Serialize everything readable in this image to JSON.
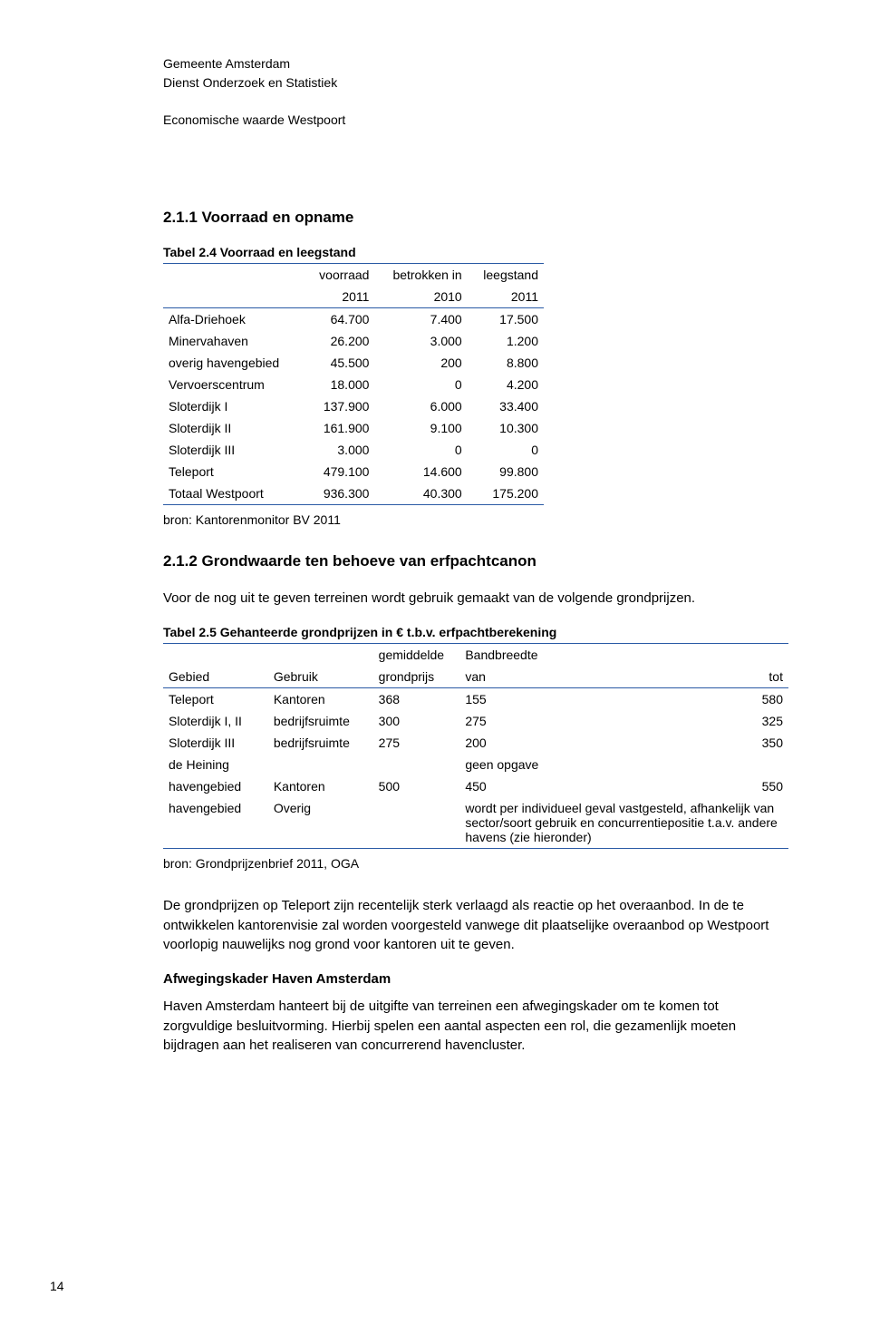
{
  "colors": {
    "rule": "#2a5aa5",
    "text": "#000000",
    "background": "#ffffff"
  },
  "header": {
    "org1": "Gemeente Amsterdam",
    "org2": "Dienst Onderzoek en Statistiek",
    "subject": "Economische waarde Westpoort"
  },
  "section1": {
    "title": "2.1.1 Voorraad en opname"
  },
  "table1": {
    "caption": "Tabel 2.4  Voorraad en leegstand",
    "headrow1": {
      "c0": "",
      "c1": "voorraad",
      "c2": "betrokken in",
      "c3": "leegstand"
    },
    "headrow2": {
      "c0": "",
      "c1": "2011",
      "c2": "2010",
      "c3": "2011"
    },
    "rows": [
      {
        "name": "Alfa-Driehoek",
        "v1": "64.700",
        "v2": "7.400",
        "v3": "17.500"
      },
      {
        "name": "Minervahaven",
        "v1": "26.200",
        "v2": "3.000",
        "v3": "1.200"
      },
      {
        "name": "overig havengebied",
        "v1": "45.500",
        "v2": "200",
        "v3": "8.800"
      },
      {
        "name": "Vervoerscentrum",
        "v1": "18.000",
        "v2": "0",
        "v3": "4.200"
      },
      {
        "name": "Sloterdijk I",
        "v1": "137.900",
        "v2": "6.000",
        "v3": "33.400"
      },
      {
        "name": "Sloterdijk II",
        "v1": "161.900",
        "v2": "9.100",
        "v3": "10.300"
      },
      {
        "name": "Sloterdijk III",
        "v1": "3.000",
        "v2": "0",
        "v3": "0"
      },
      {
        "name": "Teleport",
        "v1": "479.100",
        "v2": "14.600",
        "v3": "99.800"
      },
      {
        "name": "Totaal Westpoort",
        "v1": "936.300",
        "v2": "40.300",
        "v3": "175.200"
      }
    ],
    "source": "bron: Kantorenmonitor BV 2011"
  },
  "section2": {
    "title": "2.1.2 Grondwaarde ten behoeve van erfpachtcanon",
    "intro": "Voor de nog uit te geven terreinen wordt gebruik gemaakt van de volgende grondprijzen."
  },
  "table2": {
    "caption": "Tabel 2.5  Gehanteerde grondprijzen in €  t.b.v.  erfpachtberekening",
    "headrow1": {
      "c0": "",
      "c1": "",
      "c2": "gemiddelde",
      "c3": "Bandbreedte",
      "c4": ""
    },
    "headrow2": {
      "c0": "Gebied",
      "c1": "Gebruik",
      "c2": "grondprijs",
      "c3": "van",
      "c4": "tot"
    },
    "rows": [
      {
        "gebied": "Teleport",
        "gebruik": "Kantoren",
        "gem": "368",
        "van": "155",
        "tot": "580"
      },
      {
        "gebied": "Sloterdijk I, II",
        "gebruik": "bedrijfsruimte",
        "gem": "300",
        "van": "275",
        "tot": "325"
      },
      {
        "gebied": "Sloterdijk III",
        "gebruik": "bedrijfsruimte",
        "gem": "275",
        "van": "200",
        "tot": "350"
      },
      {
        "gebied": "de Heining",
        "gebruik": "",
        "note": "geen opgave"
      },
      {
        "gebied": "havengebied",
        "gebruik": "Kantoren",
        "gem": "500",
        "van": "450",
        "tot": "550"
      },
      {
        "gebied": "havengebied",
        "gebruik": "Overig",
        "note": "wordt per individueel geval vastgesteld, afhankelijk van sector/soort gebruik en concurrentiepositie t.a.v. andere havens (zie hieronder)"
      }
    ],
    "source": "bron: Grondprijzenbrief 2011, OGA"
  },
  "body": {
    "p1": "De grondprijzen op Teleport zijn recentelijk sterk verlaagd als reactie op het overaanbod. In de te ontwikkelen kantorenvisie zal worden voorgesteld vanwege dit plaatselijke overaanbod op Westpoort voorlopig nauwelijks nog grond voor kantoren uit te geven.",
    "h2": "Afwegingskader Haven Amsterdam",
    "p2": "Haven Amsterdam hanteert bij de uitgifte van terreinen een afwegingskader om te komen tot zorgvuldige besluitvorming. Hierbij spelen een aantal aspecten een rol, die gezamenlijk moeten bijdragen aan het realiseren van concurrerend havencluster."
  },
  "page_number": "14"
}
